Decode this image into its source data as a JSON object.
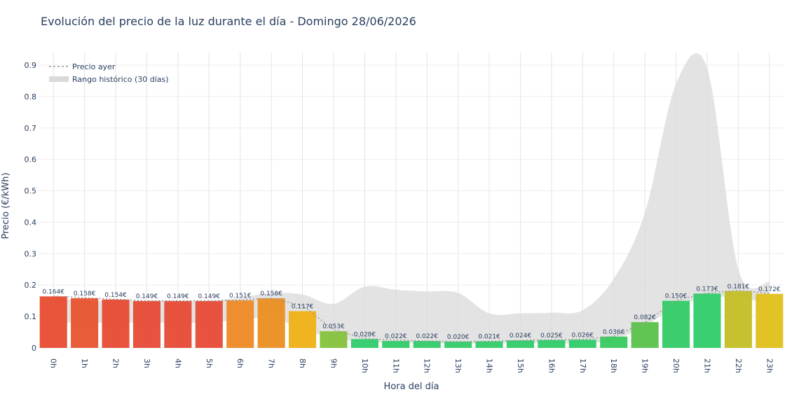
{
  "chart_data": {
    "type": "bar",
    "title": "Evolución del precio de la luz durante el día - Domingo 28/06/2026",
    "xlabel": "Hora del día",
    "ylabel": "Precio (€/kWh)",
    "ylim": [
      0,
      0.95
    ],
    "yticks": [
      0,
      0.1,
      0.2,
      0.3,
      0.4,
      0.5,
      0.6,
      0.7,
      0.8,
      0.9
    ],
    "ytick_labels": [
      "0",
      "0.1",
      "0.2",
      "0.3",
      "0.4",
      "0.5",
      "0.6",
      "0.7",
      "0.8",
      "0.9"
    ],
    "grid": true,
    "legend_position": "top-left",
    "categories": [
      "0h",
      "1h",
      "2h",
      "3h",
      "4h",
      "5h",
      "6h",
      "7h",
      "8h",
      "9h",
      "10h",
      "11h",
      "12h",
      "13h",
      "14h",
      "15h",
      "16h",
      "17h",
      "18h",
      "19h",
      "20h",
      "21h",
      "22h",
      "23h"
    ],
    "values": [
      0.164,
      0.158,
      0.154,
      0.149,
      0.149,
      0.149,
      0.151,
      0.158,
      0.117,
      0.053,
      0.028,
      0.022,
      0.022,
      0.02,
      0.021,
      0.024,
      0.025,
      0.026,
      0.036,
      0.082,
      0.15,
      0.173,
      0.181,
      0.172
    ],
    "data_labels": [
      "0.164€",
      "0.158€",
      "0.154€",
      "0.149€",
      "0.149€",
      "0.149€",
      "0.151€",
      "0.158€",
      "0.117€",
      "0.053€",
      "0.028€",
      "0.022€",
      "0.022€",
      "0.020€",
      "0.021€",
      "0.024€",
      "0.025€",
      "0.026€",
      "0.036€",
      "0.082€",
      "0.150€",
      "0.173€",
      "0.181€",
      "0.172€"
    ],
    "bar_colors": [
      "#e84c2f",
      "#e7532f",
      "#e64a33",
      "#e64a35",
      "#e64a35",
      "#e64a35",
      "#ed8a24",
      "#ea8e21",
      "#efb014",
      "#84c23c",
      "#2fcc6a",
      "#30cb69",
      "#31cb69",
      "#31cb68",
      "#31cb68",
      "#30cb69",
      "#30cb69",
      "#30cb69",
      "#38c95e",
      "#58c24a",
      "#31cb65",
      "#2fcc69",
      "#c3bf24",
      "#e0c01a"
    ],
    "series": [
      {
        "name": "Precio ayer",
        "style": "dotted-line",
        "color": "#9a9a9a",
        "values": [
          0.165,
          0.16,
          0.155,
          0.15,
          0.15,
          0.15,
          0.152,
          0.158,
          0.135,
          0.058,
          0.03,
          0.025,
          0.022,
          0.02,
          0.021,
          0.024,
          0.026,
          0.027,
          0.037,
          0.08,
          0.151,
          0.175,
          0.183,
          0.173
        ]
      },
      {
        "name": "Rango histórico (30 días)",
        "style": "band",
        "color": "#d9d9d9",
        "upper": [
          0.16,
          0.15,
          0.15,
          0.15,
          0.15,
          0.15,
          0.16,
          0.175,
          0.17,
          0.14,
          0.195,
          0.185,
          0.18,
          0.175,
          0.11,
          0.11,
          0.112,
          0.12,
          0.22,
          0.43,
          0.84,
          0.89,
          0.25,
          0.21
        ],
        "lower": [
          0.08,
          0.08,
          0.08,
          0.08,
          0.08,
          0.08,
          0.09,
          0.095,
          0.06,
          0.03,
          0.02,
          0.015,
          0.015,
          0.015,
          0.015,
          0.015,
          0.015,
          0.015,
          0.025,
          0.07,
          0.13,
          0.16,
          0.16,
          0.14
        ]
      }
    ]
  }
}
